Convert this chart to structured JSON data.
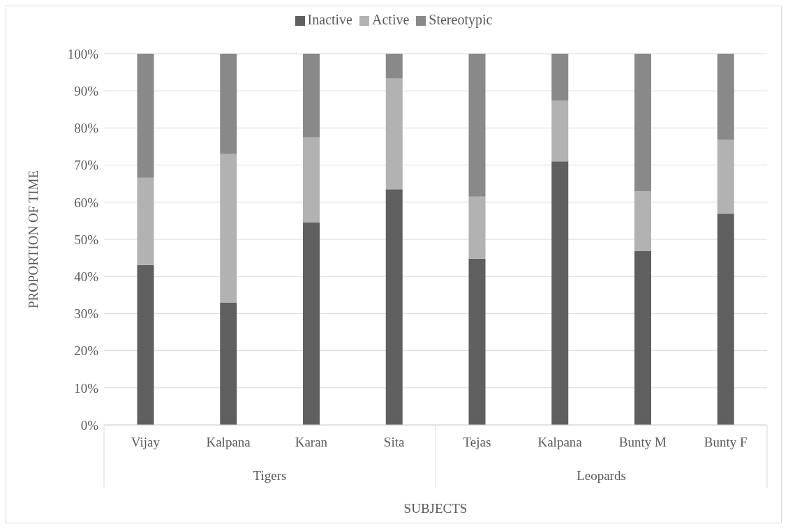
{
  "chart_data": {
    "type": "bar",
    "stacked": true,
    "xlabel": "SUBJECTS",
    "ylabel": "PROPORTION OF TIME",
    "categories": [
      "Vijay",
      "Kalpana",
      "Karan",
      "Sita",
      "Tejas",
      "Kalpana",
      "Bunty M",
      "Bunty F"
    ],
    "series": [
      {
        "name": "Inactive",
        "color": "#5f5f5f",
        "values": [
          43.1,
          33.0,
          54.6,
          63.5,
          44.8,
          71.0,
          46.8,
          56.9
        ]
      },
      {
        "name": "Active",
        "color": "#b2b2b2",
        "values": [
          23.5,
          40.0,
          22.9,
          29.8,
          16.7,
          16.3,
          16.1,
          20.0
        ]
      },
      {
        "name": "Stereotypic",
        "color": "#898989",
        "values": [
          33.4,
          27.0,
          22.5,
          6.7,
          38.5,
          12.7,
          37.1,
          23.1
        ]
      }
    ],
    "ylim": [
      0,
      100
    ],
    "yticks": [
      {
        "value": 0,
        "label": "0%"
      },
      {
        "value": 10,
        "label": "10%"
      },
      {
        "value": 20,
        "label": "20%"
      },
      {
        "value": 30,
        "label": "30%"
      },
      {
        "value": 40,
        "label": "40%"
      },
      {
        "value": 50,
        "label": "50%"
      },
      {
        "value": 60,
        "label": "60%"
      },
      {
        "value": 70,
        "label": "70%"
      },
      {
        "value": 80,
        "label": "80%"
      },
      {
        "value": 90,
        "label": "90%"
      },
      {
        "value": 100,
        "label": "100%"
      }
    ],
    "grid": "y",
    "legend": "top",
    "annotations": [
      "Tigers",
      "Leopards"
    ]
  }
}
